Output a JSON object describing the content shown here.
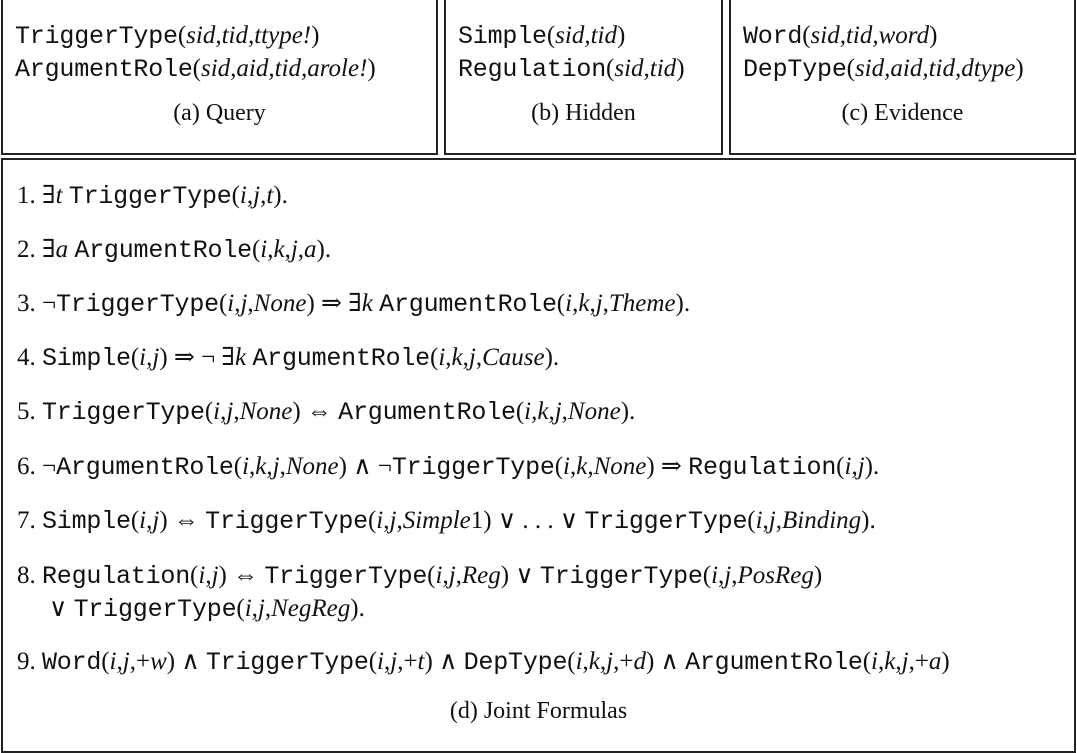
{
  "panels": {
    "query": {
      "caption": "(a) Query",
      "lines": [
        {
          "pred": "TriggerType",
          "args": "sid,tid,ttype!"
        },
        {
          "pred": "ArgumentRole",
          "args": "sid,aid,tid,arole!"
        }
      ]
    },
    "hidden": {
      "caption": "(b) Hidden",
      "lines": [
        {
          "pred": "Simple",
          "args": "sid,tid"
        },
        {
          "pred": "Regulation",
          "args": "sid,tid"
        }
      ]
    },
    "evidence": {
      "caption": "(c) Evidence",
      "lines": [
        {
          "pred": "Word",
          "args": "sid,tid,word"
        },
        {
          "pred": "DepType",
          "args": "sid,aid,tid,dtype"
        }
      ]
    }
  },
  "joint": {
    "caption": "(d) Joint Formulas",
    "formulas": [
      {
        "num": "1.",
        "parts": [
          [
            "r",
            "∃"
          ],
          [
            "i",
            "t "
          ],
          [
            "m",
            "TriggerType"
          ],
          [
            "r",
            "("
          ],
          [
            "i",
            "i"
          ],
          [
            "r",
            ","
          ],
          [
            "i",
            "j"
          ],
          [
            "r",
            ","
          ],
          [
            "i",
            "t"
          ],
          [
            "r",
            ")."
          ]
        ]
      },
      {
        "num": "2.",
        "parts": [
          [
            "r",
            "∃"
          ],
          [
            "i",
            "a "
          ],
          [
            "m",
            "ArgumentRole"
          ],
          [
            "r",
            "("
          ],
          [
            "i",
            "i"
          ],
          [
            "r",
            ","
          ],
          [
            "i",
            "k"
          ],
          [
            "r",
            ","
          ],
          [
            "i",
            "j"
          ],
          [
            "r",
            ","
          ],
          [
            "i",
            "a"
          ],
          [
            "r",
            ")."
          ]
        ]
      },
      {
        "num": "3.",
        "parts": [
          [
            "r",
            "¬"
          ],
          [
            "m",
            "TriggerType"
          ],
          [
            "r",
            "("
          ],
          [
            "i",
            "i"
          ],
          [
            "r",
            ","
          ],
          [
            "i",
            "j"
          ],
          [
            "r",
            ","
          ],
          [
            "i",
            "None"
          ],
          [
            "r",
            ") ⇒ ∃"
          ],
          [
            "i",
            "k "
          ],
          [
            "m",
            "ArgumentRole"
          ],
          [
            "r",
            "("
          ],
          [
            "i",
            "i"
          ],
          [
            "r",
            ","
          ],
          [
            "i",
            "k"
          ],
          [
            "r",
            ","
          ],
          [
            "i",
            "j"
          ],
          [
            "r",
            ","
          ],
          [
            "i",
            "Theme"
          ],
          [
            "r",
            ")."
          ]
        ]
      },
      {
        "num": "4.",
        "parts": [
          [
            "m",
            "Simple"
          ],
          [
            "r",
            "("
          ],
          [
            "i",
            "i"
          ],
          [
            "r",
            ","
          ],
          [
            "i",
            "j"
          ],
          [
            "r",
            ") ⇒ ¬ ∃"
          ],
          [
            "i",
            "k "
          ],
          [
            "m",
            "ArgumentRole"
          ],
          [
            "r",
            "("
          ],
          [
            "i",
            "i"
          ],
          [
            "r",
            ","
          ],
          [
            "i",
            "k"
          ],
          [
            "r",
            ","
          ],
          [
            "i",
            "j"
          ],
          [
            "r",
            ","
          ],
          [
            "i",
            "Cause"
          ],
          [
            "r",
            ")."
          ]
        ]
      },
      {
        "num": "5.",
        "parts": [
          [
            "m",
            "TriggerType"
          ],
          [
            "r",
            "("
          ],
          [
            "i",
            "i"
          ],
          [
            "r",
            ","
          ],
          [
            "i",
            "j"
          ],
          [
            "r",
            ","
          ],
          [
            "i",
            "None"
          ],
          [
            "r",
            ") ⇔ "
          ],
          [
            "m",
            "ArgumentRole"
          ],
          [
            "r",
            "("
          ],
          [
            "i",
            "i"
          ],
          [
            "r",
            ","
          ],
          [
            "i",
            "k"
          ],
          [
            "r",
            ","
          ],
          [
            "i",
            "j"
          ],
          [
            "r",
            ","
          ],
          [
            "i",
            "None"
          ],
          [
            "r",
            ")."
          ]
        ]
      },
      {
        "num": "6.",
        "parts": [
          [
            "r",
            "¬"
          ],
          [
            "m",
            "ArgumentRole"
          ],
          [
            "r",
            "("
          ],
          [
            "i",
            "i"
          ],
          [
            "r",
            ","
          ],
          [
            "i",
            "k"
          ],
          [
            "r",
            ","
          ],
          [
            "i",
            "j"
          ],
          [
            "r",
            ","
          ],
          [
            "i",
            "None"
          ],
          [
            "r",
            ") ∧ ¬"
          ],
          [
            "m",
            "TriggerType"
          ],
          [
            "r",
            "("
          ],
          [
            "i",
            "i"
          ],
          [
            "r",
            ","
          ],
          [
            "i",
            "k"
          ],
          [
            "r",
            ","
          ],
          [
            "i",
            "None"
          ],
          [
            "r",
            ") ⇒ "
          ],
          [
            "m",
            "Regulation"
          ],
          [
            "r",
            "("
          ],
          [
            "i",
            "i"
          ],
          [
            "r",
            ","
          ],
          [
            "i",
            "j"
          ],
          [
            "r",
            ")."
          ]
        ]
      },
      {
        "num": "7.",
        "parts": [
          [
            "m",
            "Simple"
          ],
          [
            "r",
            "("
          ],
          [
            "i",
            "i"
          ],
          [
            "r",
            ","
          ],
          [
            "i",
            "j"
          ],
          [
            "r",
            ") ⇔ "
          ],
          [
            "m",
            "TriggerType"
          ],
          [
            "r",
            "("
          ],
          [
            "i",
            "i"
          ],
          [
            "r",
            ","
          ],
          [
            "i",
            "j"
          ],
          [
            "r",
            ","
          ],
          [
            "i",
            "Simple"
          ],
          [
            "r",
            "1) ∨ . . . ∨ "
          ],
          [
            "m",
            "TriggerType"
          ],
          [
            "r",
            "("
          ],
          [
            "i",
            "i"
          ],
          [
            "r",
            ","
          ],
          [
            "i",
            "j"
          ],
          [
            "r",
            ","
          ],
          [
            "i",
            "Binding"
          ],
          [
            "r",
            ")."
          ]
        ]
      },
      {
        "num": "8.",
        "parts": [
          [
            "m",
            "Regulation"
          ],
          [
            "r",
            "("
          ],
          [
            "i",
            "i"
          ],
          [
            "r",
            ","
          ],
          [
            "i",
            "j"
          ],
          [
            "r",
            ") ⇔ "
          ],
          [
            "m",
            "TriggerType"
          ],
          [
            "r",
            "("
          ],
          [
            "i",
            "i"
          ],
          [
            "r",
            ","
          ],
          [
            "i",
            "j"
          ],
          [
            "r",
            ","
          ],
          [
            "i",
            "Reg"
          ],
          [
            "r",
            ") ∨ "
          ],
          [
            "m",
            "TriggerType"
          ],
          [
            "r",
            "("
          ],
          [
            "i",
            "i"
          ],
          [
            "r",
            ","
          ],
          [
            "i",
            "j"
          ],
          [
            "r",
            ","
          ],
          [
            "i",
            "PosReg"
          ],
          [
            "r",
            ")"
          ]
        ],
        "cont": [
          [
            "r",
            "∨ "
          ],
          [
            "m",
            "TriggerType"
          ],
          [
            "r",
            "("
          ],
          [
            "i",
            "i"
          ],
          [
            "r",
            ","
          ],
          [
            "i",
            "j"
          ],
          [
            "r",
            ","
          ],
          [
            "i",
            "NegReg"
          ],
          [
            "r",
            ")."
          ]
        ]
      },
      {
        "num": "9.",
        "parts": [
          [
            "m",
            "Word"
          ],
          [
            "r",
            "("
          ],
          [
            "i",
            "i"
          ],
          [
            "r",
            ","
          ],
          [
            "i",
            "j"
          ],
          [
            "r",
            ",+"
          ],
          [
            "i",
            "w"
          ],
          [
            "r",
            ") ∧ "
          ],
          [
            "m",
            "TriggerType"
          ],
          [
            "r",
            "("
          ],
          [
            "i",
            "i"
          ],
          [
            "r",
            ","
          ],
          [
            "i",
            "j"
          ],
          [
            "r",
            ",+"
          ],
          [
            "i",
            "t"
          ],
          [
            "r",
            ") ∧ "
          ],
          [
            "m",
            "DepType"
          ],
          [
            "r",
            "("
          ],
          [
            "i",
            "i"
          ],
          [
            "r",
            ","
          ],
          [
            "i",
            "k"
          ],
          [
            "r",
            ","
          ],
          [
            "i",
            "j"
          ],
          [
            "r",
            ",+"
          ],
          [
            "i",
            "d"
          ],
          [
            "r",
            ") ∧ "
          ],
          [
            "m",
            "ArgumentRole"
          ],
          [
            "r",
            "("
          ],
          [
            "i",
            "i"
          ],
          [
            "r",
            ","
          ],
          [
            "i",
            "k"
          ],
          [
            "r",
            ","
          ],
          [
            "i",
            "j"
          ],
          [
            "r",
            ",+"
          ],
          [
            "i",
            "a"
          ],
          [
            "r",
            ")"
          ]
        ]
      }
    ]
  }
}
